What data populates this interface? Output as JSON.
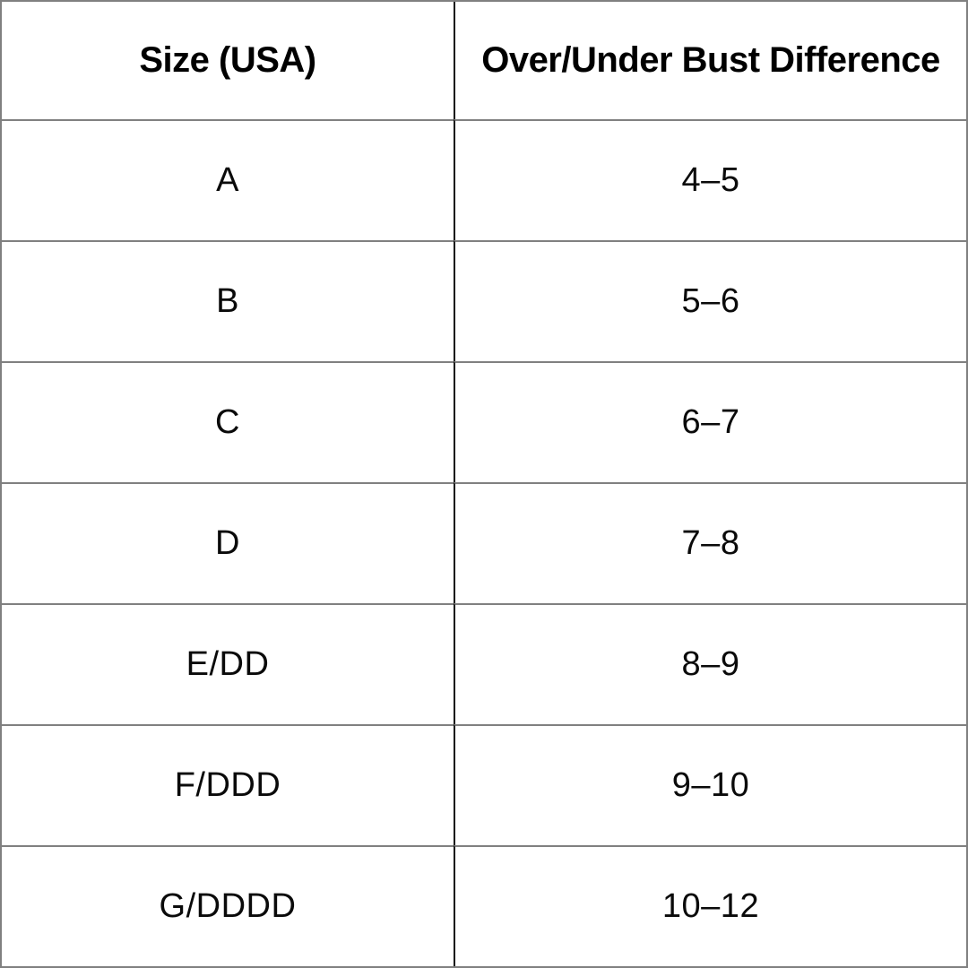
{
  "chart_data": {
    "type": "table",
    "title": "",
    "columns": [
      "Size (USA)",
      "Over/Under Bust Difference"
    ],
    "rows": [
      {
        "size": "A",
        "difference": "4–5"
      },
      {
        "size": "B",
        "difference": "5–6"
      },
      {
        "size": "C",
        "difference": "6–7"
      },
      {
        "size": "D",
        "difference": "7–8"
      },
      {
        "size": "E/DD",
        "difference": "8–9"
      },
      {
        "size": "F/DDD",
        "difference": "9–10"
      },
      {
        "size": "G/DDDD",
        "difference": "10–12"
      }
    ],
    "layout": {
      "grid": "on",
      "header_style": "bold",
      "row_count": 7,
      "column_count": 2
    }
  },
  "colors": {
    "background": "#ffffff",
    "text": "#0a0a0a",
    "header_text": "#000000",
    "row_border": "#808080",
    "column_divider": "#111111",
    "outer_border": "#808080"
  }
}
